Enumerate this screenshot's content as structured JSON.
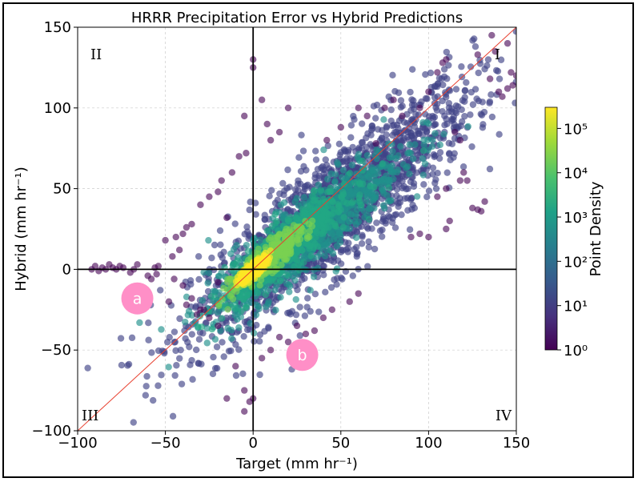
{
  "chart_data": {
    "type": "scatter",
    "title": "HRRR Precipitation Error vs Hybrid Predictions",
    "xlabel": "Target (mm hr⁻¹)",
    "ylabel": "Hybrid (mm hr⁻¹)",
    "xlim": [
      -100,
      150
    ],
    "ylim": [
      -100,
      150
    ],
    "xticks": [
      -100,
      -50,
      0,
      50,
      100,
      150
    ],
    "yticks": [
      -100,
      -50,
      0,
      50,
      100,
      150
    ],
    "xtick_labels": [
      "−100",
      "−50",
      "0",
      "50",
      "100",
      "150"
    ],
    "ytick_labels": [
      "−100",
      "−50",
      "0",
      "50",
      "100",
      "150"
    ],
    "grid": true,
    "reference_line": {
      "type": "y=x",
      "color": "#e8402f"
    },
    "zero_lines": true,
    "quadrant_labels": [
      {
        "text": "I",
        "corner": "top-right"
      },
      {
        "text": "II",
        "corner": "top-left"
      },
      {
        "text": "III",
        "corner": "bottom-left"
      },
      {
        "text": "IV",
        "corner": "bottom-right"
      }
    ],
    "annotations": [
      {
        "text": "a",
        "x": -66,
        "y": -18,
        "color": "#ff8fc7"
      },
      {
        "text": "b",
        "x": 28,
        "y": -53,
        "color": "#ff8fc7"
      }
    ],
    "colorbar": {
      "label": "Point Density",
      "scale": "log",
      "range": [
        1,
        300000
      ],
      "ticks": [
        1,
        10,
        100,
        1000,
        10000,
        100000
      ],
      "tick_labels": [
        "10⁰",
        "10¹",
        "10²",
        "10³",
        "10⁴",
        "10⁵"
      ],
      "colormap": "viridis"
    },
    "density_cloud": [
      {
        "x": 0,
        "y": 0,
        "sx": 4,
        "sy": 4,
        "density": 200000
      },
      {
        "x": 8,
        "y": 6,
        "sx": 10,
        "sy": 8,
        "density": 20000
      },
      {
        "x": 20,
        "y": 15,
        "sx": 18,
        "sy": 14,
        "density": 3000
      },
      {
        "x": 30,
        "y": 22,
        "sx": 28,
        "sy": 22,
        "density": 300
      },
      {
        "x": 45,
        "y": 35,
        "sx": 40,
        "sy": 35,
        "density": 20
      }
    ],
    "outlier_points": [
      [
        -92,
        0
      ],
      [
        -90,
        2
      ],
      [
        -88,
        -1
      ],
      [
        -86,
        1
      ],
      [
        -84,
        0
      ],
      [
        -82,
        3
      ],
      [
        -80,
        1
      ],
      [
        -78,
        0
      ],
      [
        -76,
        2
      ],
      [
        -74,
        1
      ],
      [
        -70,
        -2
      ],
      [
        -68,
        0
      ],
      [
        -66,
        3
      ],
      [
        -56,
        1
      ],
      [
        -55,
        -3
      ],
      [
        -54,
        2
      ],
      [
        -58,
        -6
      ],
      [
        -60,
        -4
      ],
      [
        -50,
        18
      ],
      [
        -44,
        20
      ],
      [
        -40,
        22
      ],
      [
        -42,
        12
      ],
      [
        -46,
        8
      ],
      [
        -38,
        26
      ],
      [
        -35,
        28
      ],
      [
        -30,
        40
      ],
      [
        -25,
        45
      ],
      [
        -20,
        48
      ],
      [
        -18,
        55
      ],
      [
        -12,
        60
      ],
      [
        -15,
        32
      ],
      [
        -8,
        70
      ],
      [
        -4,
        72
      ],
      [
        0,
        125
      ],
      [
        0,
        130
      ],
      [
        -5,
        95
      ],
      [
        10,
        80
      ],
      [
        15,
        85
      ],
      [
        8,
        90
      ],
      [
        20,
        100
      ],
      [
        5,
        105
      ],
      [
        70,
        78
      ],
      [
        85,
        95
      ],
      [
        95,
        100
      ],
      [
        100,
        110
      ],
      [
        105,
        122
      ],
      [
        108,
        128
      ],
      [
        110,
        130
      ],
      [
        115,
        85
      ],
      [
        118,
        80
      ],
      [
        120,
        60
      ],
      [
        122,
        55
      ],
      [
        125,
        38
      ],
      [
        128,
        37
      ],
      [
        130,
        36
      ],
      [
        132,
        42
      ],
      [
        128,
        133
      ],
      [
        135,
        118
      ],
      [
        140,
        110
      ],
      [
        142,
        107
      ],
      [
        145,
        112
      ],
      [
        148,
        114
      ],
      [
        150,
        120
      ],
      [
        147,
        122
      ],
      [
        138,
        135
      ],
      [
        145,
        140
      ],
      [
        136,
        145
      ],
      [
        90,
        20
      ],
      [
        95,
        22
      ],
      [
        100,
        20
      ],
      [
        110,
        25
      ],
      [
        112,
        30
      ],
      [
        105,
        45
      ],
      [
        110,
        50
      ],
      [
        118,
        55
      ],
      [
        55,
        -20
      ],
      [
        60,
        -15
      ],
      [
        45,
        -25
      ],
      [
        40,
        -30
      ],
      [
        35,
        -38
      ],
      [
        30,
        -40
      ],
      [
        20,
        -45
      ],
      [
        -10,
        -60
      ],
      [
        -5,
        -75
      ],
      [
        0,
        -80
      ],
      [
        -2,
        -82
      ],
      [
        -5,
        -88
      ],
      [
        -15,
        -80
      ],
      [
        -25,
        -30
      ],
      [
        -30,
        -25
      ],
      [
        5,
        -55
      ],
      [
        10,
        -50
      ],
      [
        15,
        -42
      ],
      [
        25,
        -35
      ],
      [
        -20,
        -35
      ],
      [
        -28,
        -25
      ],
      [
        -40,
        -10
      ],
      [
        -45,
        -6
      ],
      [
        -48,
        -20
      ],
      [
        -38,
        -22
      ],
      [
        -35,
        -18
      ],
      [
        -32,
        -28
      ],
      [
        -20,
        -8
      ],
      [
        60,
        100
      ],
      [
        65,
        95
      ],
      [
        75,
        100
      ],
      [
        80,
        105
      ],
      [
        50,
        88
      ],
      [
        42,
        80
      ]
    ]
  }
}
